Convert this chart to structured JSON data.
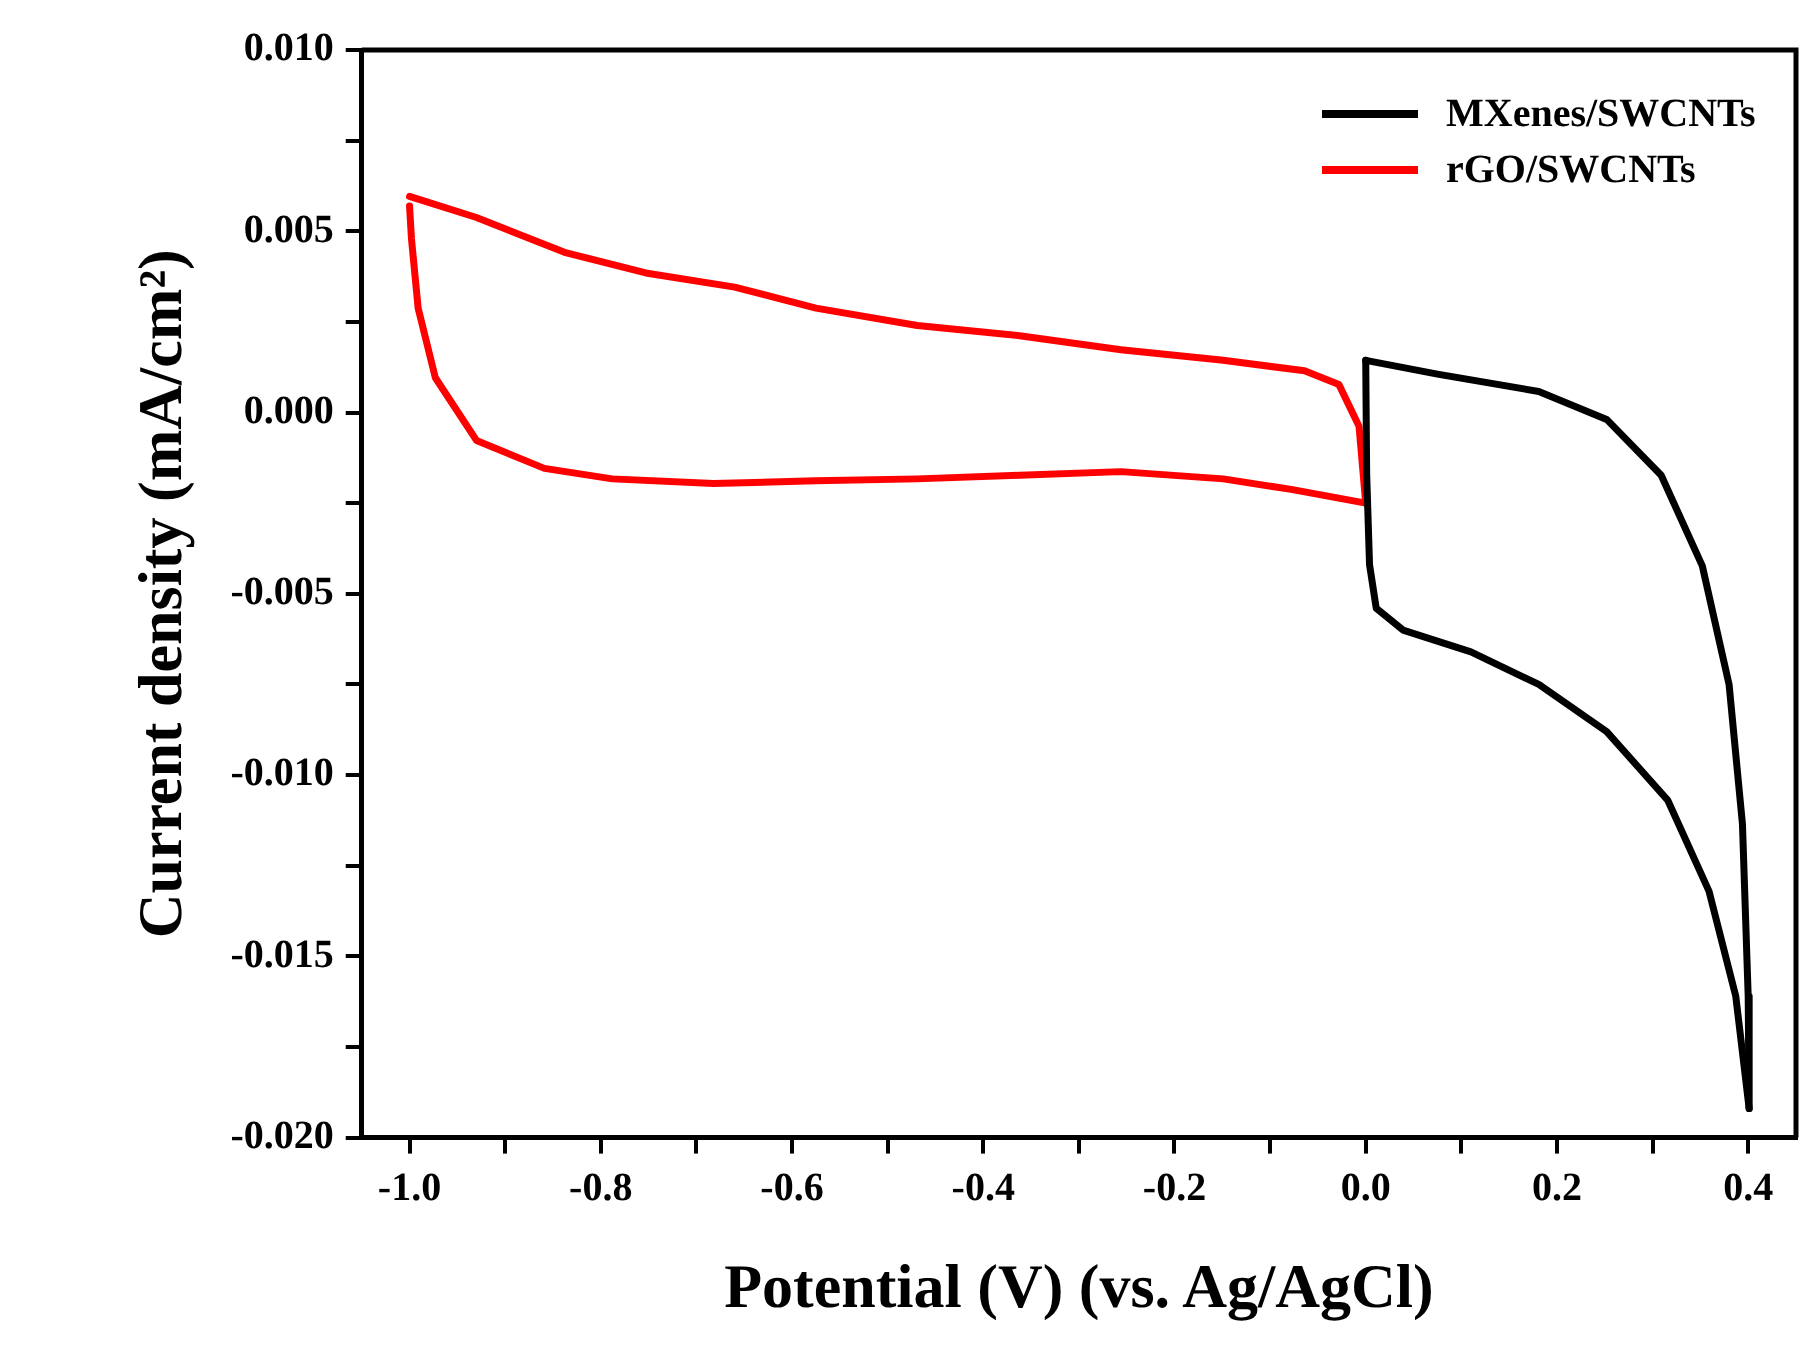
{
  "chart_data": {
    "type": "line",
    "xlabel": "Potential (V) (vs. Ag/AgCl)",
    "ylabel": "Current density (mA/cm²)",
    "xlim": [
      -1.05,
      0.45
    ],
    "xticks": [
      {
        "value": -1.0,
        "label": "-1.0"
      },
      {
        "value": -0.9,
        "label": null
      },
      {
        "value": -0.8,
        "label": "-0.8"
      },
      {
        "value": -0.7,
        "label": null
      },
      {
        "value": -0.6,
        "label": "-0.6"
      },
      {
        "value": -0.5,
        "label": null
      },
      {
        "value": -0.4,
        "label": "-0.4"
      },
      {
        "value": -0.3,
        "label": null
      },
      {
        "value": -0.2,
        "label": "-0.2"
      },
      {
        "value": -0.1,
        "label": null
      },
      {
        "value": 0.0,
        "label": "0.0"
      },
      {
        "value": 0.1,
        "label": null
      },
      {
        "value": 0.2,
        "label": "0.2"
      },
      {
        "value": 0.3,
        "label": null
      },
      {
        "value": 0.4,
        "label": "0.4"
      }
    ],
    "ylim": [
      -0.02,
      0.01
    ],
    "yticks": [
      {
        "value": -0.02,
        "label": "-0.020"
      },
      {
        "value": -0.0175,
        "label": null
      },
      {
        "value": -0.015,
        "label": "-0.015"
      },
      {
        "value": -0.0125,
        "label": null
      },
      {
        "value": -0.01,
        "label": "-0.010"
      },
      {
        "value": -0.0075,
        "label": null
      },
      {
        "value": -0.005,
        "label": "-0.005"
      },
      {
        "value": -0.0025,
        "label": null
      },
      {
        "value": 0.0,
        "label": "0.000"
      },
      {
        "value": 0.0025,
        "label": null
      },
      {
        "value": 0.005,
        "label": "0.005"
      },
      {
        "value": 0.0075,
        "label": null
      },
      {
        "value": 0.01,
        "label": "0.010"
      }
    ],
    "grid": false,
    "legend": "top right",
    "marker": "none",
    "line_style": "solid",
    "series": [
      {
        "name": "MXenes/SWCNTs",
        "color": "#000000",
        "x": [
          0.0,
          0.075,
          0.181,
          0.252,
          0.309,
          0.352,
          0.38,
          0.394,
          0.4,
          0.401
        ],
        "values": [
          0.00144,
          0.00106,
          0.00058,
          -0.00019,
          -0.00173,
          -0.00423,
          -0.0075,
          -0.01135,
          -0.0161,
          -0.0192
        ]
      },
      {
        "color": "#000000",
        "x": [
          0.401,
          0.387,
          0.359,
          0.316,
          0.252,
          0.181,
          0.11,
          0.039,
          0.011,
          0.004,
          0.001,
          0.0
        ],
        "values": [
          -0.0192,
          -0.0161,
          -0.0132,
          -0.0107,
          -0.0088,
          -0.0075,
          -0.0066,
          -0.006,
          -0.0054,
          -0.0042,
          -0.0017,
          0.00144
        ]
      },
      {
        "name": "rGO/SWCNTs",
        "color": "#ff0000",
        "x": [
          -1.0,
          -0.93,
          -0.838,
          -0.753,
          -0.66,
          -0.575,
          -0.469,
          -0.362,
          -0.256,
          -0.149,
          -0.064,
          -0.028,
          -0.007,
          0.0
        ],
        "values": [
          0.00596,
          0.00538,
          0.00442,
          0.00385,
          0.00346,
          0.00288,
          0.0024,
          0.00212,
          0.00173,
          0.00144,
          0.00115,
          0.00077,
          -0.00038,
          -0.0025
        ]
      },
      {
        "color": "#ff0000",
        "x": [
          0.0,
          -0.078,
          -0.149,
          -0.256,
          -0.362,
          -0.469,
          -0.575,
          -0.682,
          -0.788,
          -0.859,
          -0.93,
          -0.973,
          -0.991,
          -0.998,
          -1.0
        ],
        "values": [
          -0.0025,
          -0.00212,
          -0.00183,
          -0.00163,
          -0.00173,
          -0.00183,
          -0.00188,
          -0.00196,
          -0.00183,
          -0.00154,
          -0.00077,
          0.00096,
          0.00288,
          0.0048,
          0.0057
        ]
      }
    ]
  }
}
